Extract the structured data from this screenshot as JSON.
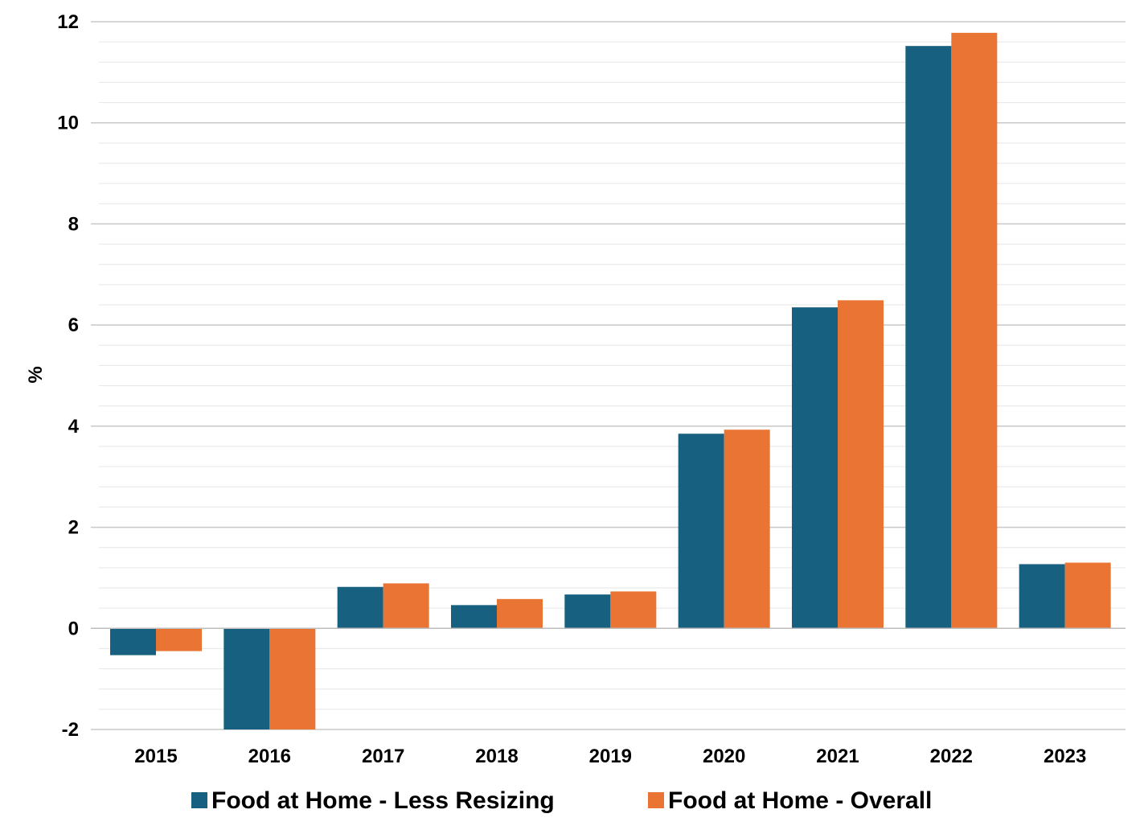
{
  "chart_data": {
    "type": "bar",
    "ylabel": "%",
    "xlabel": "",
    "categories": [
      "2015",
      "2016",
      "2017",
      "2018",
      "2019",
      "2020",
      "2021",
      "2022",
      "2023"
    ],
    "series": [
      {
        "name": "Food at Home - Less Resizing",
        "color": "#17607f",
        "values": [
          -0.53,
          -2.0,
          0.82,
          0.46,
          0.67,
          3.85,
          6.35,
          11.52,
          1.27
        ]
      },
      {
        "name": "Food at Home - Overall",
        "color": "#e97434",
        "values": [
          -0.45,
          -2.0,
          0.89,
          0.58,
          0.73,
          3.93,
          6.49,
          11.78,
          1.3
        ]
      }
    ],
    "ylim": [
      -2,
      12
    ],
    "yticks": [
      "-2",
      "0",
      "2",
      "4",
      "6",
      "8",
      "10",
      "12"
    ],
    "grid": true,
    "legend": "bottom"
  }
}
